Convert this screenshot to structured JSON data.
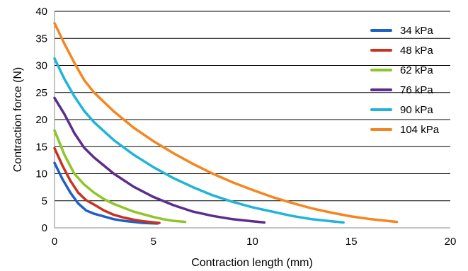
{
  "chart_data": {
    "type": "line",
    "xlabel": "Contraction length  (mm)",
    "ylabel": "Contraction force (N)",
    "xlim": [
      0,
      20
    ],
    "ylim": [
      0,
      40
    ],
    "xticks": [
      0,
      5,
      10,
      15,
      20
    ],
    "yticks": [
      0,
      5,
      10,
      15,
      20,
      25,
      30,
      35,
      40
    ],
    "grid": "horizontal",
    "legend_position": "top-right",
    "series": [
      {
        "name": "34 kPa",
        "color": "#1f5fc8",
        "x": [
          0,
          0.4,
          0.8,
          1.2,
          1.6,
          2.0,
          2.5,
          3.0,
          3.5,
          4.0,
          4.5,
          5.2
        ],
        "y": [
          12.0,
          9.0,
          6.5,
          4.5,
          3.2,
          2.6,
          2.1,
          1.6,
          1.3,
          1.1,
          0.9,
          0.8
        ]
      },
      {
        "name": "48 kPa",
        "color": "#c8321f",
        "x": [
          0,
          0.4,
          0.8,
          1.2,
          1.6,
          2.0,
          2.5,
          3.0,
          3.5,
          4.0,
          4.5,
          5.3
        ],
        "y": [
          14.7,
          11.5,
          8.7,
          6.5,
          5.1,
          4.3,
          3.2,
          2.4,
          1.9,
          1.5,
          1.2,
          0.9
        ]
      },
      {
        "name": "62 kPa",
        "color": "#8ec62a",
        "x": [
          0,
          0.5,
          1.0,
          1.5,
          2.0,
          2.5,
          3.0,
          3.5,
          4.0,
          4.5,
          5.0,
          5.5,
          6.0,
          6.6
        ],
        "y": [
          18.0,
          13.5,
          10.0,
          8.0,
          6.5,
          5.3,
          4.4,
          3.7,
          3.0,
          2.5,
          2.0,
          1.6,
          1.3,
          1.1
        ]
      },
      {
        "name": "76 kPa",
        "color": "#5b2d8e",
        "x": [
          0,
          0.5,
          1.0,
          1.5,
          2.0,
          3.0,
          4.0,
          5.0,
          6.0,
          7.0,
          8.0,
          9.0,
          10.0,
          10.6
        ],
        "y": [
          24.0,
          21.0,
          17.5,
          14.8,
          13.0,
          10.0,
          7.6,
          5.7,
          4.2,
          3.0,
          2.2,
          1.6,
          1.2,
          1.0
        ]
      },
      {
        "name": "90 kPa",
        "color": "#1fb4d8",
        "x": [
          0,
          0.5,
          1.0,
          1.5,
          2.0,
          3.0,
          4.0,
          5.0,
          6.0,
          7.0,
          8.0,
          9.0,
          10.0,
          11.0,
          12.0,
          13.0,
          14.0,
          14.6
        ],
        "y": [
          31.3,
          27.5,
          24.3,
          21.6,
          19.5,
          16.2,
          13.5,
          11.2,
          9.2,
          7.5,
          6.0,
          4.8,
          3.8,
          3.0,
          2.2,
          1.6,
          1.2,
          1.0
        ]
      },
      {
        "name": "104 kPa",
        "color": "#f5861f",
        "x": [
          0,
          0.5,
          1.0,
          1.5,
          2.0,
          3.0,
          4.0,
          5.0,
          6.0,
          7.0,
          8.0,
          9.0,
          10.0,
          11.0,
          12.0,
          13.0,
          14.0,
          15.0,
          16.0,
          17.3
        ],
        "y": [
          37.8,
          34.0,
          30.5,
          27.3,
          25.0,
          21.5,
          18.5,
          16.0,
          13.8,
          11.8,
          10.0,
          8.4,
          7.0,
          5.7,
          4.6,
          3.6,
          2.8,
          2.1,
          1.6,
          1.1
        ]
      }
    ]
  }
}
